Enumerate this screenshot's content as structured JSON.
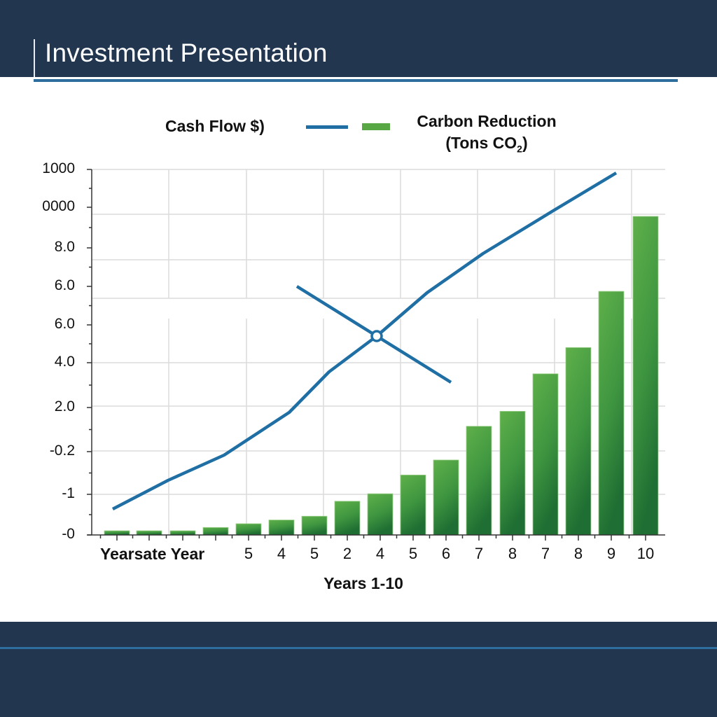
{
  "header": {
    "title": "Investment Presentation"
  },
  "legend": {
    "cash_flow_label": "Cash Flow $)",
    "carbon_label_line1": "Carbon Reduction",
    "carbon_label_line2": "(Tons CO",
    "carbon_label_sub": "2",
    "carbon_label_end": ")"
  },
  "colors": {
    "header_bg": "#22364f",
    "accent_blue": "#1f6fa5",
    "bar_green_light": "#5aab46",
    "bar_green_dark": "#1e6e32"
  },
  "axes": {
    "y_ticks": [
      {
        "label": "1000",
        "y": 242
      },
      {
        "label": "0000",
        "y": 296
      },
      {
        "label": "8.0",
        "y": 354
      },
      {
        "label": "6.0",
        "y": 409
      },
      {
        "label": "6.0",
        "y": 464
      },
      {
        "label": "4.0",
        "y": 518
      },
      {
        "label": "2.0",
        "y": 582
      },
      {
        "label": "-0.2",
        "y": 645
      },
      {
        "label": "-1",
        "y": 706
      },
      {
        "label": "-0",
        "y": 764
      }
    ],
    "x_first_label": "Yearsate Year",
    "x_tick_labels": [
      "5",
      "4",
      "5",
      "2",
      "4",
      "5",
      "6",
      "7",
      "8",
      "7",
      "8",
      "9",
      "10"
    ],
    "x_title": "Years 1-10"
  },
  "chart_data": {
    "type": "bar",
    "title": "",
    "xlabel": "Years 1-10",
    "ylabel": "",
    "legend": [
      "Cash Flow $)",
      "Carbon Reduction (Tons CO2)"
    ],
    "legend_position": "top",
    "grid": true,
    "y_tick_labels": [
      "-0",
      "-1",
      "-0.2",
      "2.0",
      "4.0",
      "6.0",
      "6.0",
      "8.0",
      "0000",
      "1000"
    ],
    "categories": [
      "Yearsate Year",
      "",
      "",
      "",
      "5",
      "4",
      "5",
      "2",
      "4",
      "5",
      "6",
      "7",
      "8",
      "7",
      "8",
      "9",
      "10"
    ],
    "series": [
      {
        "name": "Carbon Reduction (Tons CO2)",
        "type": "bar",
        "values": [
          0.1,
          0.1,
          0.1,
          0.2,
          0.3,
          0.4,
          0.5,
          0.9,
          1.1,
          1.6,
          2.0,
          2.9,
          3.3,
          4.3,
          5.0,
          6.5,
          8.5
        ]
      },
      {
        "name": "Cash Flow $)",
        "type": "line",
        "points": [
          [
            0.5,
            0.7
          ],
          [
            4,
            2.6
          ],
          [
            6.5,
            3.6
          ],
          [
            8,
            5.0
          ],
          [
            9.5,
            6.1
          ],
          [
            11,
            7.2
          ],
          [
            14,
            8.9
          ],
          [
            16,
            9.6
          ]
        ]
      },
      {
        "name": "Cash Flow $) (crossing segment)",
        "type": "line",
        "points": [
          [
            6,
            6.5
          ],
          [
            9.5,
            6.1
          ],
          [
            11,
            4.2
          ]
        ]
      }
    ]
  }
}
